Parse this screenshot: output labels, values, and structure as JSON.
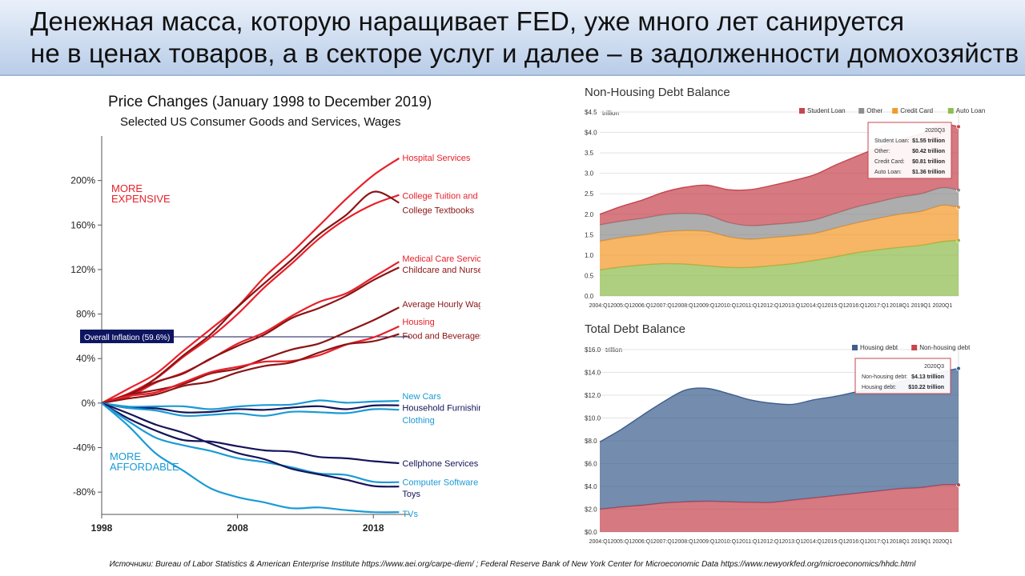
{
  "slide": {
    "title_line1": "Денежная масса, которую наращивает FED, уже много лет санируется",
    "title_line2": "не в ценах товаров, а в секторе услуг и далее – в задолженности домохозяйств",
    "sources": "Источники: Bureau of Labor Statistics & American Enterprise Institute https://www.aei.org/carpe-diem/ ; Federal Reserve Bank of New York Center for Microeconomic Data https://www.newyorkfed.org/microeconomics/hhdc.html"
  },
  "chart_data": [
    {
      "type": "line",
      "title": "Price Changes",
      "title_suffix": "(January 1998 to December 2019)",
      "subtitle": "Selected US Consumer Goods and Services, Wages",
      "ylim": [
        -100,
        240
      ],
      "yticks": [
        200,
        160,
        120,
        80,
        40,
        0,
        -40,
        -80
      ],
      "ytick_labels": [
        "200%",
        "160%",
        "120%",
        "80%",
        "40%",
        "0%",
        "-40%",
        "-80%"
      ],
      "xlim": [
        1998,
        2020.7
      ],
      "xticks": [
        1998,
        2008,
        2018
      ],
      "xtick_labels": [
        "1998",
        "2008",
        "2018"
      ],
      "region_labels": {
        "more_expensive_1": "MORE",
        "more_expensive_2": "EXPENSIVE",
        "more_affordable_1": "MORE",
        "more_affordable_2": "AFFORDABLE"
      },
      "overall_inflation": {
        "label": "Overall Inflation (59.6%)",
        "value": 59.6
      },
      "x": [
        1998,
        2000,
        2002,
        2004,
        2006,
        2008,
        2010,
        2012,
        2014,
        2016,
        2018,
        2019.9
      ],
      "series": [
        {
          "name": "Hospital Services",
          "color": "#e8202a",
          "values": [
            0,
            12,
            28,
            46,
            66,
            88,
            112,
            136,
            160,
            182,
            206,
            220
          ]
        },
        {
          "name": "College Tuition and Fees",
          "color": "#e8202a",
          "values": [
            0,
            9,
            23,
            40,
            60,
            80,
            103,
            127,
            147,
            165,
            180,
            187
          ]
        },
        {
          "name": "College Textbooks",
          "color": "#8b1414",
          "values": [
            0,
            8,
            22,
            42,
            63,
            85,
            108,
            130,
            150,
            170,
            190,
            180
          ]
        },
        {
          "name": "Medical Care Services",
          "color": "#e8202a",
          "values": [
            0,
            7,
            17,
            28,
            40,
            52,
            65,
            78,
            90,
            100,
            112,
            127
          ]
        },
        {
          "name": "Childcare and Nursery School",
          "color": "#8b1414",
          "values": [
            0,
            8,
            18,
            28,
            39,
            51,
            63,
            75,
            86,
            97,
            109,
            122
          ]
        },
        {
          "name": "Average Hourly Wages",
          "color": "#8b1414",
          "values": [
            0,
            6,
            12,
            18,
            25,
            32,
            40,
            47,
            55,
            63,
            74,
            86
          ]
        },
        {
          "name": "Housing",
          "color": "#e8202a",
          "values": [
            0,
            5,
            11,
            18,
            27,
            34,
            36,
            38,
            44,
            51,
            60,
            69
          ]
        },
        {
          "name": "Food and Beverages",
          "color": "#8b1414",
          "values": [
            0,
            4,
            9,
            14,
            20,
            28,
            32,
            38,
            45,
            52,
            57,
            62
          ]
        },
        {
          "name": "New Cars",
          "color": "#1a9ad6",
          "values": [
            0,
            -2,
            -3,
            -4,
            -4,
            -4,
            -2,
            0,
            1,
            1,
            2,
            2
          ]
        },
        {
          "name": "Household Furnishings",
          "color": "#14145a",
          "values": [
            0,
            -3,
            -6,
            -8,
            -7,
            -7,
            -5,
            -4,
            -4,
            -4,
            -3,
            -2
          ]
        },
        {
          "name": "Clothing",
          "color": "#1a9ad6",
          "values": [
            0,
            -4,
            -8,
            -10,
            -11,
            -10,
            -10,
            -9,
            -8,
            -8,
            -7,
            -6
          ]
        },
        {
          "name": "Cellphone Services",
          "color": "#14145a",
          "values": [
            0,
            -15,
            -25,
            -32,
            -36,
            -38,
            -42,
            -45,
            -47,
            -50,
            -53,
            -54
          ]
        },
        {
          "name": "Computer Software",
          "color": "#1a9ad6",
          "values": [
            0,
            -18,
            -30,
            -38,
            -44,
            -48,
            -54,
            -58,
            -62,
            -66,
            -70,
            -71
          ]
        },
        {
          "name": "Toys",
          "color": "#14145a",
          "values": [
            0,
            -10,
            -18,
            -28,
            -36,
            -44,
            -52,
            -58,
            -64,
            -70,
            -73,
            -75
          ]
        },
        {
          "name": "TVs",
          "color": "#1a9ad6",
          "values": [
            0,
            -20,
            -45,
            -62,
            -75,
            -85,
            -90,
            -93,
            -95,
            -96,
            -97,
            -98
          ]
        }
      ]
    },
    {
      "type": "area",
      "title": "Non-Housing Debt Balance",
      "unit": "trillion",
      "ylim": [
        0,
        4.5
      ],
      "ytick_labels": [
        "$4.5",
        "$4.0",
        "3.5",
        "3.0",
        "2.5",
        "2.0",
        "1.5",
        "1.0",
        "0.5",
        "0.0"
      ],
      "yticks": [
        4.5,
        4.0,
        3.5,
        3.0,
        2.5,
        2.0,
        1.5,
        1.0,
        0.5,
        0.0
      ],
      "xtick_labels": [
        "2004:Q1",
        "2005:Q1",
        "2006:Q1",
        "2007:Q1",
        "2008:Q1",
        "2009:Q1",
        "2010:Q1",
        "2011:Q1",
        "2012:Q1",
        "2013:Q1",
        "2014:Q1",
        "2015:Q1",
        "2016:Q1",
        "2017:Q1",
        "2018Q1",
        "2019Q1",
        "2020Q1"
      ],
      "x": [
        2004,
        2005,
        2006,
        2007,
        2008,
        2009,
        2010,
        2011,
        2012,
        2013,
        2014,
        2015,
        2016,
        2017,
        2018,
        2019,
        2020,
        2020.75
      ],
      "series": [
        {
          "name": "Student Loan",
          "color": "#c6454f",
          "values": [
            0.26,
            0.36,
            0.45,
            0.55,
            0.64,
            0.73,
            0.8,
            0.88,
            0.95,
            1.03,
            1.1,
            1.18,
            1.24,
            1.33,
            1.4,
            1.47,
            1.54,
            1.55
          ]
        },
        {
          "name": "Other",
          "color": "#8e8e8e",
          "values": [
            0.4,
            0.4,
            0.41,
            0.42,
            0.42,
            0.4,
            0.35,
            0.33,
            0.32,
            0.32,
            0.33,
            0.36,
            0.39,
            0.4,
            0.42,
            0.43,
            0.43,
            0.42
          ]
        },
        {
          "name": "Credit Card",
          "color": "#f29a2b",
          "values": [
            0.7,
            0.72,
            0.73,
            0.78,
            0.82,
            0.84,
            0.75,
            0.69,
            0.69,
            0.68,
            0.66,
            0.7,
            0.73,
            0.77,
            0.81,
            0.83,
            0.89,
            0.81
          ]
        },
        {
          "name": "Auto Loan",
          "color": "#8fbd4e",
          "values": [
            0.64,
            0.71,
            0.76,
            0.79,
            0.78,
            0.74,
            0.7,
            0.7,
            0.74,
            0.79,
            0.87,
            0.96,
            1.06,
            1.13,
            1.19,
            1.24,
            1.33,
            1.36
          ]
        }
      ],
      "tooltip": {
        "period": "2020Q3",
        "rows": [
          {
            "label": "Student Loan:",
            "value": "$1.55 trillion"
          },
          {
            "label": "Other:",
            "value": "$0.42 trillion"
          },
          {
            "label": "Credit Card:",
            "value": "$0.81 trillion"
          },
          {
            "label": "Auto Loan:",
            "value": "$1.36 trillion"
          }
        ]
      }
    },
    {
      "type": "area",
      "title": "Total Debt Balance",
      "unit": "trillion",
      "ylim": [
        0,
        16
      ],
      "ytick_labels": [
        "$16.0",
        "$14.0",
        "$12.0",
        "$10.0",
        "$8.0",
        "$6.0",
        "$4.0",
        "$2.0",
        "$0.0"
      ],
      "yticks": [
        16,
        14,
        12,
        10,
        8,
        6,
        4,
        2,
        0
      ],
      "xtick_labels": [
        "2004:Q1",
        "2005:Q1",
        "2006:Q1",
        "2007:Q1",
        "2008:Q1",
        "2009:Q1",
        "2010:Q1",
        "2011:Q1",
        "2012:Q1",
        "2013:Q1",
        "2014:Q1",
        "2015:Q1",
        "2016:Q1",
        "2017:Q1",
        "2018Q1",
        "2019Q1",
        "2020Q1"
      ],
      "x": [
        2004,
        2005,
        2006,
        2007,
        2008,
        2009,
        2010,
        2011,
        2012,
        2013,
        2014,
        2015,
        2016,
        2017,
        2018,
        2019,
        2020,
        2020.75
      ],
      "series": [
        {
          "name": "Housing debt",
          "color": "#3e5f8e",
          "values": [
            5.9,
            6.8,
            7.9,
            8.9,
            9.8,
            9.9,
            9.5,
            9.0,
            8.7,
            8.4,
            8.6,
            8.7,
            8.9,
            9.1,
            9.4,
            9.6,
            9.9,
            10.22
          ]
        },
        {
          "name": "Non-housing debt",
          "color": "#c6454f",
          "values": [
            2.0,
            2.2,
            2.35,
            2.55,
            2.65,
            2.7,
            2.65,
            2.6,
            2.6,
            2.8,
            3.0,
            3.2,
            3.4,
            3.6,
            3.8,
            3.9,
            4.15,
            4.13
          ]
        }
      ],
      "tooltip": {
        "period": "2020Q3",
        "rows": [
          {
            "label": "Non-housing debt:",
            "value": "$4.13 trillion"
          },
          {
            "label": "Housing debt:",
            "value": "$10.22 trillion"
          }
        ]
      }
    }
  ]
}
